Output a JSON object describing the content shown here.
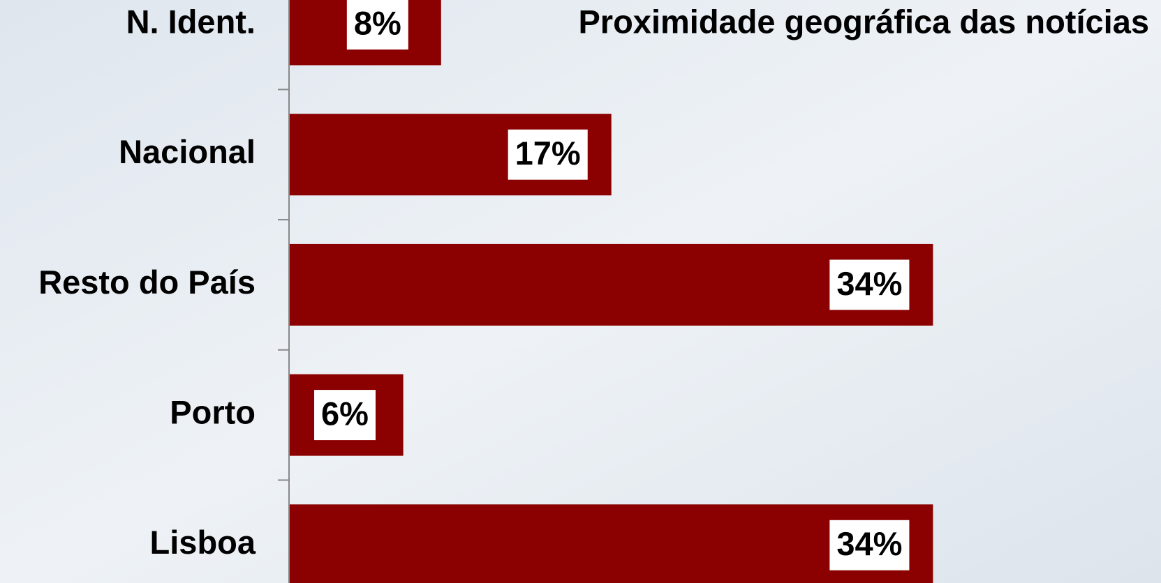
{
  "chart_data": {
    "type": "bar",
    "orientation": "horizontal",
    "title": "Proximidade geográfica das notícias",
    "categories": [
      "N. Ident.",
      "Nacional",
      "Resto do País",
      "Porto",
      "Lisboa"
    ],
    "values": [
      8,
      17,
      34,
      6,
      34
    ],
    "value_labels": [
      "8%",
      "17%",
      "34%",
      "6%",
      "34%"
    ],
    "color": "#8b0000"
  }
}
